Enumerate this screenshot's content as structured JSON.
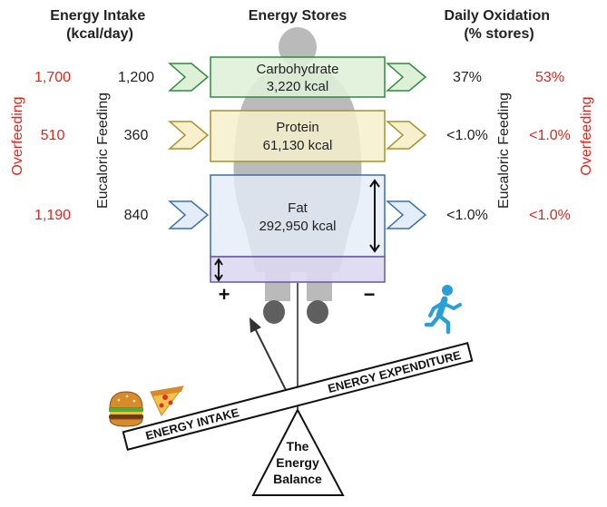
{
  "headers": {
    "intake": [
      "Energy Intake",
      "(kcal/day)"
    ],
    "stores": "Energy Stores",
    "oxidation": [
      "Daily Oxidation",
      "(% stores)"
    ]
  },
  "side_labels": {
    "eucaloric": "Eucaloric Feeding",
    "overfeeding": "Overfeeding"
  },
  "rows": [
    {
      "name": "Carbohydrate",
      "stores": "3,220 kcal",
      "overfeeding_intake": "1,700",
      "eucaloric_intake": "1,200",
      "eucaloric_oxidation": "37%",
      "overfeeding_oxidation": "53%",
      "fill": "#dff0d8",
      "stroke": "#2e8b3e"
    },
    {
      "name": "Protein",
      "stores": "61,130 kcal",
      "overfeeding_intake": "510",
      "eucaloric_intake": "360",
      "eucaloric_oxidation": "<1.0%",
      "overfeeding_oxidation": "<1.0%",
      "fill": "#f7f0cc",
      "stroke": "#a8902a"
    },
    {
      "name": "Fat",
      "stores": "292,950 kcal",
      "overfeeding_intake": "1,190",
      "eucaloric_intake": "840",
      "eucaloric_oxidation": "<1.0%",
      "overfeeding_oxidation": "<1.0%",
      "fill": "#e3ecf7",
      "stroke": "#3a6fa8"
    }
  ],
  "balance": {
    "plus": "+",
    "minus": "−",
    "intake": "ENERGY INTAKE",
    "expenditure": "ENERGY EXPENDITURE",
    "fulcrum": [
      "The",
      "Energy",
      "Balance"
    ]
  },
  "colors": {
    "overfeeding": "#e0261b",
    "text": "#222222",
    "extra_fat_fill": "#ddd8f0",
    "extra_fat_stroke": "#6a55a8",
    "runner": "#2a9fd6"
  },
  "icons": [
    "person-silhouette-icon",
    "runner-icon",
    "burger-icon",
    "pizza-icon",
    "double-arrow-icon"
  ]
}
